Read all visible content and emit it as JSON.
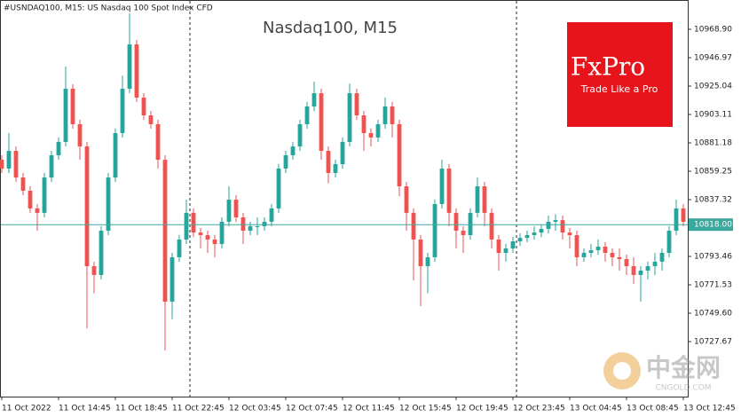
{
  "chart_data": {
    "type": "candlestick",
    "title": "Nasdaq100, M15",
    "symbol_label": "#USNDAQ100, M15:  US Nasdaq 100 Spot Index CFD",
    "logo": {
      "brand": "FxPro",
      "slogan": "Trade Like a Pro"
    },
    "watermark": {
      "name": "中金网",
      "site": "CNGOLD.COM"
    },
    "bull_color": "#26a69a",
    "bear_color": "#ef5350",
    "categories": [
      "11 Oct 2022",
      null,
      null,
      null,
      null,
      null,
      null,
      null,
      "11 Oct 14:45",
      null,
      null,
      null,
      null,
      null,
      null,
      null,
      "11 Oct 18:45",
      null,
      null,
      null,
      null,
      null,
      null,
      null,
      "11 Oct 22:45",
      null,
      null,
      null,
      null,
      null,
      null,
      null,
      "12 Oct 03:45",
      null,
      null,
      null,
      null,
      null,
      null,
      null,
      "12 Oct 07:45",
      null,
      null,
      null,
      null,
      null,
      null,
      null,
      "12 Oct 11:45",
      null,
      null,
      null,
      null,
      null,
      null,
      null,
      "12 Oct 15:45",
      null,
      null,
      null,
      null,
      null,
      null,
      null,
      "12 Oct 19:45",
      null,
      null,
      null,
      null,
      null,
      null,
      null,
      "12 Oct 23:45",
      null,
      null,
      null,
      null,
      null,
      null,
      null,
      "13 Oct 04:45",
      null,
      null,
      null,
      null,
      null,
      null,
      null,
      "13 Oct 08:45",
      null,
      null,
      null,
      null,
      null,
      null,
      null,
      "13 Oct 12:45"
    ],
    "open": [
      10868.1,
      10861.3,
      10875.0,
      10854.4,
      10844.2,
      10830.5,
      10827.1,
      10854.4,
      10871.6,
      10881.9,
      10923.0,
      10895.6,
      10878.4,
      10785.9,
      10779.1,
      10813.3,
      10854.4,
      10888.7,
      10923.0,
      10957.2,
      10916.1,
      10902.4,
      10895.6,
      10868.1,
      10758.5,
      10792.8,
      10806.5,
      10827.1,
      10811.9,
      10809.9,
      10806.5,
      10803.0,
      10820.2,
      10837.3,
      10823.6,
      10813.3,
      10816.8,
      10816.8,
      10820.2,
      10830.5,
      10861.3,
      10871.6,
      10878.4,
      10895.6,
      10909.3,
      10919.5,
      10875.0,
      10857.9,
      10864.7,
      10881.9,
      10919.5,
      10902.4,
      10888.7,
      10885.3,
      10895.6,
      10909.3,
      10895.6,
      10847.6,
      10827.1,
      10806.5,
      10785.9,
      10792.8,
      10833.9,
      10861.3,
      10827.1,
      10813.3,
      10809.9,
      10827.1,
      10847.6,
      10827.1,
      10806.5,
      10796.2,
      10799.6,
      10805.1,
      10807.8,
      10809.9,
      10811.9,
      10814.7,
      10820.2,
      10821.5,
      10811.9,
      10809.9,
      10792.8,
      10796.2,
      10798.2,
      10801.0,
      10796.2,
      10792.8,
      10791.4,
      10785.9,
      10779.1,
      10782.5,
      10785.9,
      10789.4,
      10796.2,
      10813.3,
      10830.5
    ],
    "high": [
      10871.6,
      10888.7,
      10878.5,
      10857.9,
      10847.7,
      10834.0,
      10857.9,
      10875.1,
      10885.4,
      10940.1,
      10926.5,
      10899.1,
      10881.9,
      10789.4,
      10816.8,
      10857.9,
      10892.2,
      10933.0,
      10981.2,
      10960.7,
      10919.6,
      10905.9,
      10899.1,
      10871.6,
      10796.3,
      10810.0,
      10837.3,
      10830.6,
      10815.4,
      10813.4,
      10810.0,
      10823.7,
      10847.6,
      10840.8,
      10827.1,
      10820.3,
      10823.6,
      10823.7,
      10834.0,
      10864.8,
      10875.1,
      10881.9,
      10899.1,
      10912.8,
      10928.5,
      10923.0,
      10878.5,
      10868.2,
      10885.4,
      10927.0,
      10923.0,
      10905.9,
      10892.2,
      10899.1,
      10916.1,
      10912.8,
      10899.1,
      10851.1,
      10830.6,
      10810.0,
      10796.3,
      10837.4,
      10868.1,
      10864.8,
      10830.6,
      10816.8,
      10830.6,
      10854.4,
      10851.1,
      10830.6,
      10810.0,
      10803.1,
      10808.6,
      10811.3,
      10813.4,
      10816.8,
      10818.2,
      10825.0,
      10826.0,
      10825.0,
      10815.4,
      10813.4,
      10799.7,
      10803.0,
      10806.5,
      10804.5,
      10799.7,
      10799.6,
      10794.9,
      10792.8,
      10786.0,
      10789.4,
      10796.2,
      10799.7,
      10816.8,
      10837.3,
      10834.0
    ],
    "low": [
      10857.8,
      10857.8,
      10850.9,
      10840.7,
      10827.0,
      10813.3,
      10823.6,
      10850.9,
      10868.1,
      10878.4,
      10892.1,
      10868.1,
      10737.9,
      10765.0,
      10775.6,
      10809.8,
      10850.9,
      10885.2,
      10919.5,
      10912.6,
      10898.9,
      10892.1,
      10861.3,
      10720.8,
      10745.0,
      10789.3,
      10803.0,
      10808.4,
      10799.6,
      10796.2,
      10792.8,
      10799.5,
      10816.7,
      10820.1,
      10803.0,
      10809.8,
      10810.0,
      10813.3,
      10816.7,
      10827.0,
      10857.8,
      10868.1,
      10874.9,
      10892.1,
      10905.8,
      10868.1,
      10850.0,
      10854.4,
      10861.2,
      10878.4,
      10898.9,
      10875.0,
      10878.4,
      10881.8,
      10892.1,
      10885.3,
      10840.0,
      10813.3,
      10775.0,
      10755.1,
      10765.0,
      10789.3,
      10830.4,
      10816.8,
      10799.6,
      10796.2,
      10806.4,
      10823.6,
      10816.8,
      10799.6,
      10782.5,
      10789.4,
      10796.1,
      10801.6,
      10804.3,
      10806.4,
      10808.4,
      10811.2,
      10813.3,
      10806.5,
      10799.6,
      10786.0,
      10789.3,
      10792.7,
      10794.7,
      10789.4,
      10786.0,
      10782.5,
      10779.1,
      10772.3,
      10758.5,
      10775.6,
      10779.1,
      10782.5,
      10792.7,
      10809.8,
      10816.7
    ],
    "close": [
      10861.3,
      10875.0,
      10854.4,
      10844.2,
      10830.5,
      10827.1,
      10854.4,
      10871.6,
      10881.9,
      10923.0,
      10895.6,
      10878.4,
      10785.9,
      10779.1,
      10813.3,
      10854.4,
      10888.7,
      10923.0,
      10957.2,
      10916.1,
      10902.4,
      10895.6,
      10868.1,
      10758.5,
      10792.8,
      10806.5,
      10827.1,
      10811.9,
      10809.9,
      10806.5,
      10803.0,
      10820.2,
      10837.3,
      10823.6,
      10813.3,
      10816.8,
      10816.8,
      10820.2,
      10830.5,
      10861.3,
      10871.6,
      10878.4,
      10895.6,
      10909.3,
      10919.5,
      10875.0,
      10857.9,
      10864.7,
      10881.9,
      10919.5,
      10902.4,
      10888.7,
      10885.3,
      10895.6,
      10909.3,
      10895.6,
      10847.6,
      10827.1,
      10806.5,
      10785.9,
      10792.8,
      10833.9,
      10861.3,
      10827.1,
      10813.3,
      10809.9,
      10827.1,
      10847.6,
      10827.1,
      10806.5,
      10796.2,
      10799.6,
      10805.1,
      10807.8,
      10809.9,
      10811.9,
      10814.7,
      10820.2,
      10821.5,
      10811.9,
      10809.9,
      10792.8,
      10796.2,
      10798.2,
      10801.0,
      10796.2,
      10792.8,
      10791.4,
      10785.9,
      10779.1,
      10782.5,
      10785.9,
      10789.4,
      10796.2,
      10813.3,
      10830.5,
      10820.2
    ],
    "last_price": {
      "value": 10818,
      "label": "10818.00"
    },
    "last_price_color": "#3aa89c",
    "ylim": [
      10685.18,
      10989.46
    ],
    "yticks": [
      {
        "value": 10968.9,
        "label": "10968.90"
      },
      {
        "value": 10946.97,
        "label": "10946.97"
      },
      {
        "value": 10925.04,
        "label": "10925.04"
      },
      {
        "value": 10903.11,
        "label": "10903.11"
      },
      {
        "value": 10881.18,
        "label": "10881.18"
      },
      {
        "value": 10859.25,
        "label": "10859.25"
      },
      {
        "value": 10837.32,
        "label": "10837.32"
      },
      {
        "value": 10793.46,
        "label": "10793.46"
      },
      {
        "value": 10771.53,
        "label": "10771.53"
      },
      {
        "value": 10749.6,
        "label": "10749.60"
      },
      {
        "value": 10727.67,
        "label": "10727.67"
      }
    ],
    "grid": false
  }
}
